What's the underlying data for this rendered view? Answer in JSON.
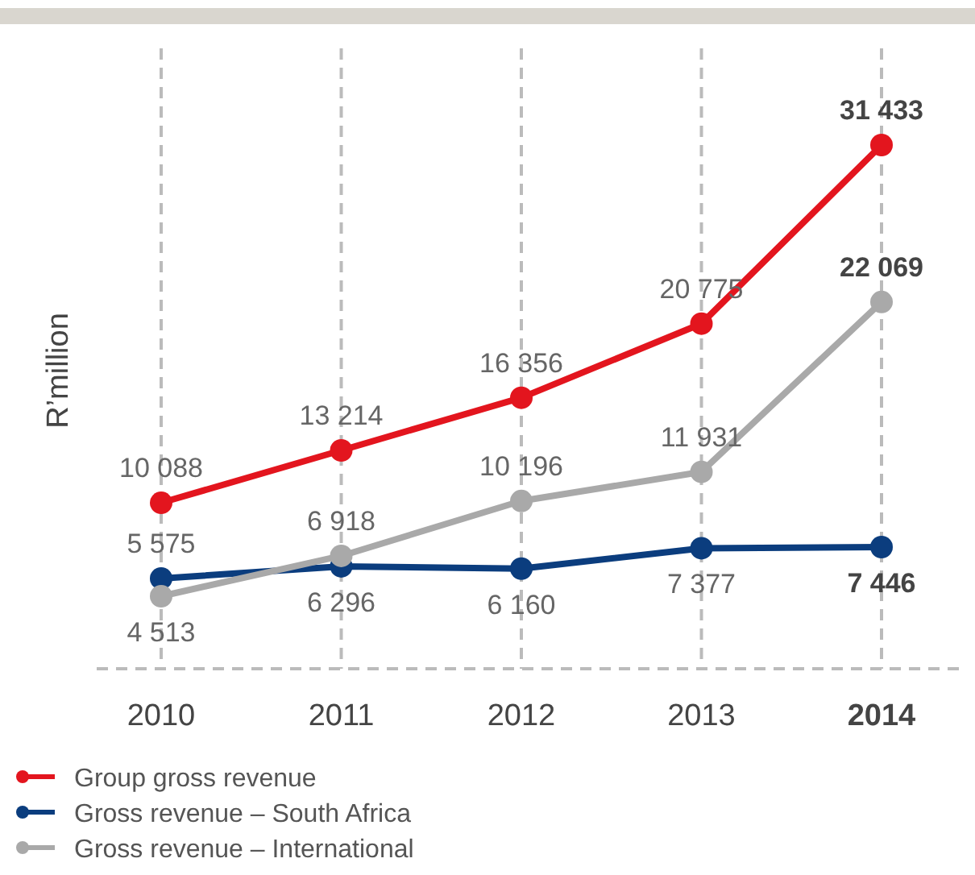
{
  "chart_data": {
    "type": "line",
    "ylabel": "R’million",
    "categories": [
      "2010",
      "2011",
      "2012",
      "2013",
      "2014"
    ],
    "series": [
      {
        "name": "Group gross revenue",
        "color": "#e3151e",
        "values": [
          10088,
          13214,
          16356,
          20775,
          31433
        ]
      },
      {
        "name": "Gross revenue – South Africa",
        "color": "#0b3d7e",
        "values": [
          5575,
          6296,
          6160,
          7377,
          7446
        ]
      },
      {
        "name": "Gross revenue – International",
        "color": "#a9a9a9",
        "values": [
          4513,
          6918,
          10196,
          11931,
          22069
        ]
      }
    ],
    "data_labels": true,
    "grid": "x",
    "legend": "bottom",
    "marker": "circle",
    "line_style": "solid"
  }
}
